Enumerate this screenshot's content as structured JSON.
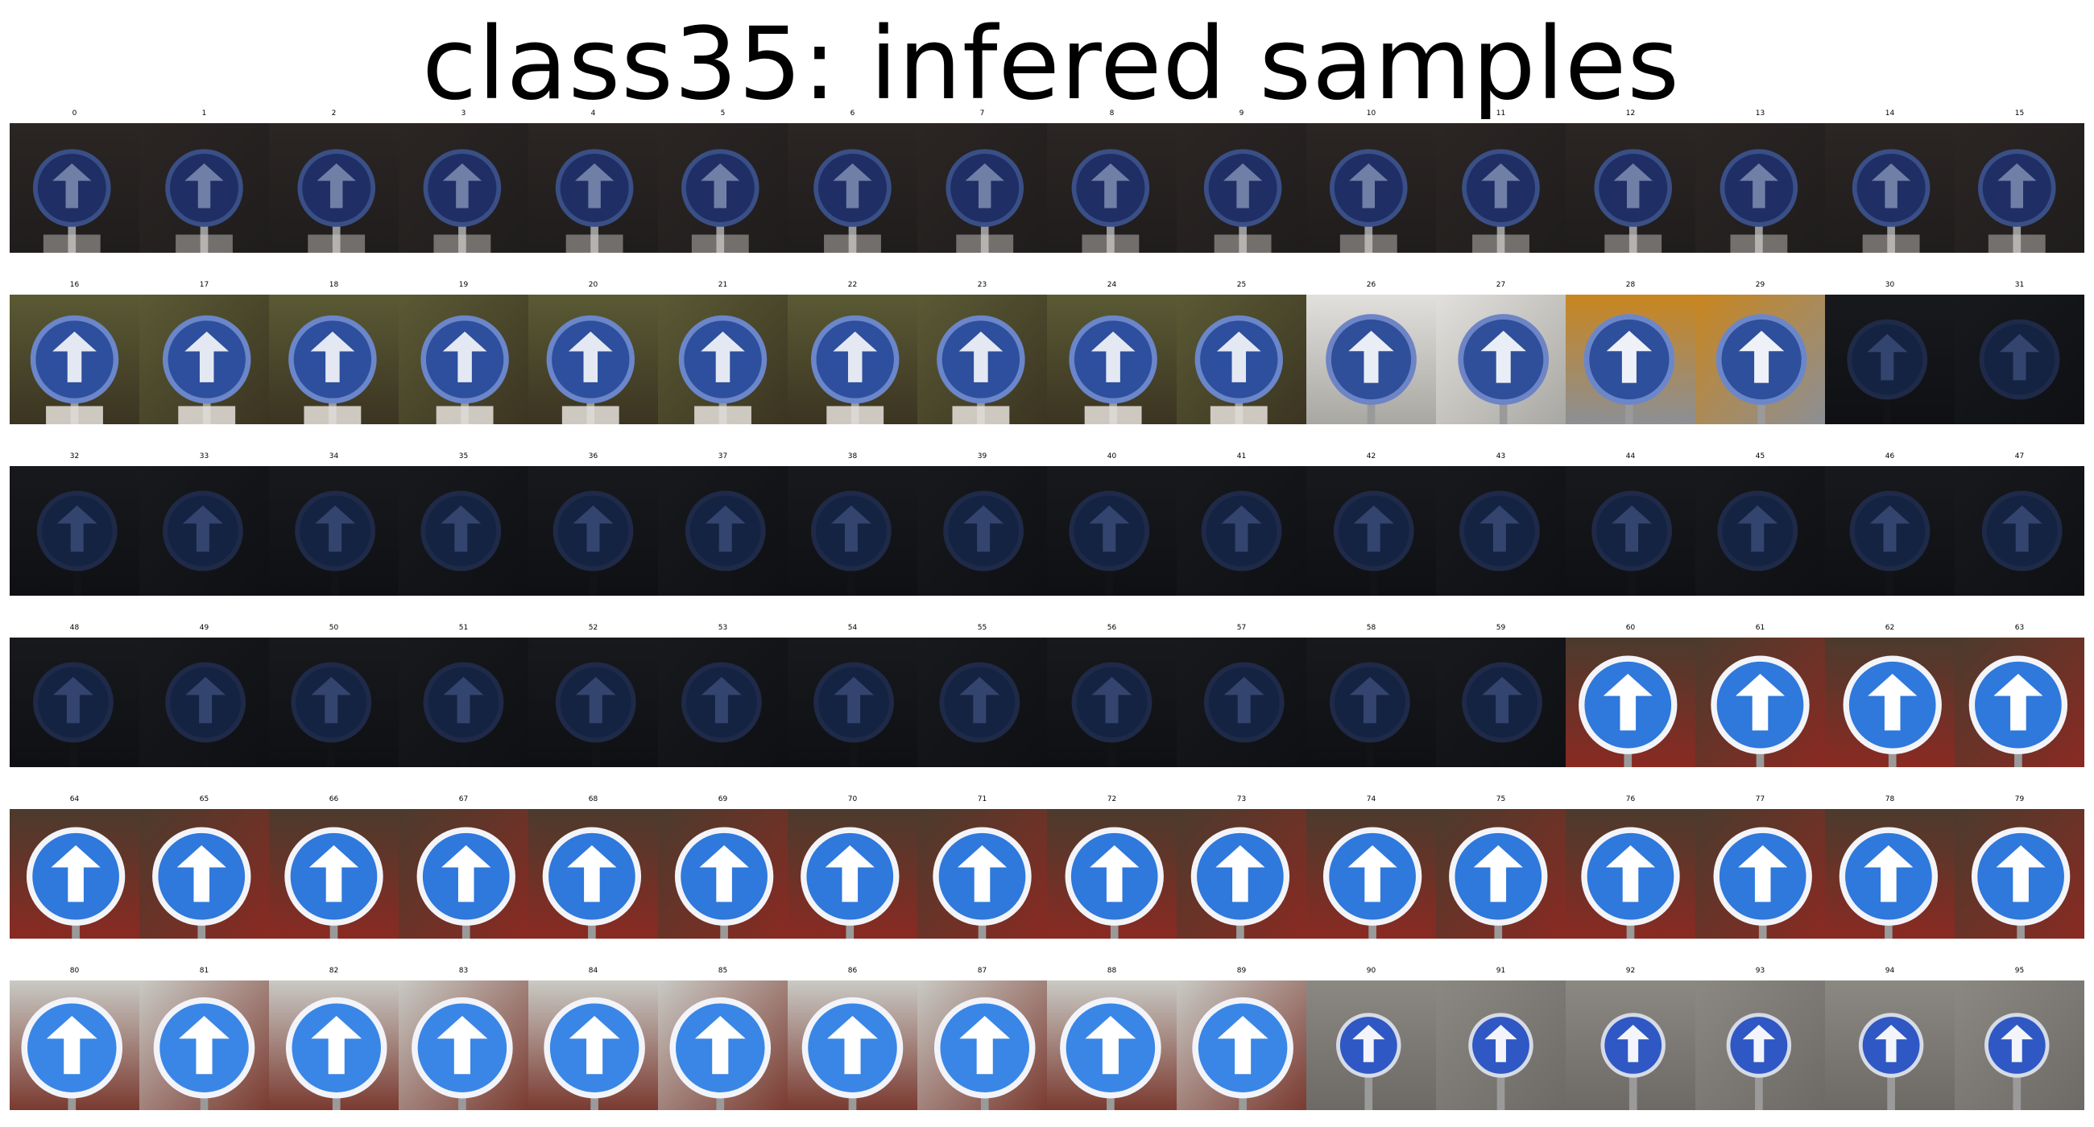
{
  "title": "class35: infered samples",
  "grid": {
    "columns": 16,
    "rows": 6
  },
  "samples": [
    {
      "label": "0",
      "scene": "dark-plate"
    },
    {
      "label": "1",
      "scene": "dark-plate"
    },
    {
      "label": "2",
      "scene": "dark-plate"
    },
    {
      "label": "3",
      "scene": "dark-plate"
    },
    {
      "label": "4",
      "scene": "dark-plate"
    },
    {
      "label": "5",
      "scene": "dark-plate"
    },
    {
      "label": "6",
      "scene": "dark-plate"
    },
    {
      "label": "7",
      "scene": "dark-plate"
    },
    {
      "label": "8",
      "scene": "dark-plate"
    },
    {
      "label": "9",
      "scene": "dark-plate"
    },
    {
      "label": "10",
      "scene": "dark-plate"
    },
    {
      "label": "11",
      "scene": "dark-plate"
    },
    {
      "label": "12",
      "scene": "dark-plate"
    },
    {
      "label": "13",
      "scene": "dark-plate"
    },
    {
      "label": "14",
      "scene": "dark-plate"
    },
    {
      "label": "15",
      "scene": "dark-plate"
    },
    {
      "label": "16",
      "scene": "foliage"
    },
    {
      "label": "17",
      "scene": "foliage"
    },
    {
      "label": "18",
      "scene": "foliage"
    },
    {
      "label": "19",
      "scene": "foliage"
    },
    {
      "label": "20",
      "scene": "foliage"
    },
    {
      "label": "21",
      "scene": "foliage"
    },
    {
      "label": "22",
      "scene": "foliage"
    },
    {
      "label": "23",
      "scene": "foliage"
    },
    {
      "label": "24",
      "scene": "foliage"
    },
    {
      "label": "25",
      "scene": "foliage"
    },
    {
      "label": "26",
      "scene": "bright-edge"
    },
    {
      "label": "27",
      "scene": "bright-edge"
    },
    {
      "label": "28",
      "scene": "orange-side"
    },
    {
      "label": "29",
      "scene": "orange-side"
    },
    {
      "label": "30",
      "scene": "very-dark"
    },
    {
      "label": "31",
      "scene": "very-dark"
    },
    {
      "label": "32",
      "scene": "very-dark"
    },
    {
      "label": "33",
      "scene": "very-dark"
    },
    {
      "label": "34",
      "scene": "very-dark"
    },
    {
      "label": "35",
      "scene": "very-dark"
    },
    {
      "label": "36",
      "scene": "very-dark"
    },
    {
      "label": "37",
      "scene": "very-dark"
    },
    {
      "label": "38",
      "scene": "very-dark"
    },
    {
      "label": "39",
      "scene": "very-dark"
    },
    {
      "label": "40",
      "scene": "very-dark"
    },
    {
      "label": "41",
      "scene": "very-dark"
    },
    {
      "label": "42",
      "scene": "very-dark"
    },
    {
      "label": "43",
      "scene": "very-dark"
    },
    {
      "label": "44",
      "scene": "very-dark"
    },
    {
      "label": "45",
      "scene": "very-dark"
    },
    {
      "label": "46",
      "scene": "very-dark"
    },
    {
      "label": "47",
      "scene": "very-dark"
    },
    {
      "label": "48",
      "scene": "very-dark"
    },
    {
      "label": "49",
      "scene": "very-dark"
    },
    {
      "label": "50",
      "scene": "very-dark"
    },
    {
      "label": "51",
      "scene": "very-dark"
    },
    {
      "label": "52",
      "scene": "very-dark"
    },
    {
      "label": "53",
      "scene": "very-dark"
    },
    {
      "label": "54",
      "scene": "very-dark"
    },
    {
      "label": "55",
      "scene": "very-dark"
    },
    {
      "label": "56",
      "scene": "very-dark"
    },
    {
      "label": "57",
      "scene": "very-dark"
    },
    {
      "label": "58",
      "scene": "very-dark"
    },
    {
      "label": "59",
      "scene": "very-dark"
    },
    {
      "label": "60",
      "scene": "red-wall"
    },
    {
      "label": "61",
      "scene": "red-wall"
    },
    {
      "label": "62",
      "scene": "red-wall"
    },
    {
      "label": "63",
      "scene": "red-wall"
    },
    {
      "label": "64",
      "scene": "red-wall"
    },
    {
      "label": "65",
      "scene": "red-wall"
    },
    {
      "label": "66",
      "scene": "red-wall"
    },
    {
      "label": "67",
      "scene": "red-wall"
    },
    {
      "label": "68",
      "scene": "red-wall"
    },
    {
      "label": "69",
      "scene": "red-wall"
    },
    {
      "label": "70",
      "scene": "red-wall"
    },
    {
      "label": "71",
      "scene": "red-wall"
    },
    {
      "label": "72",
      "scene": "red-wall"
    },
    {
      "label": "73",
      "scene": "red-wall"
    },
    {
      "label": "74",
      "scene": "red-wall"
    },
    {
      "label": "75",
      "scene": "red-wall"
    },
    {
      "label": "76",
      "scene": "red-wall"
    },
    {
      "label": "77",
      "scene": "red-wall"
    },
    {
      "label": "78",
      "scene": "red-wall"
    },
    {
      "label": "79",
      "scene": "red-wall"
    },
    {
      "label": "80",
      "scene": "bright-sign"
    },
    {
      "label": "81",
      "scene": "bright-sign"
    },
    {
      "label": "82",
      "scene": "bright-sign"
    },
    {
      "label": "83",
      "scene": "bright-sign"
    },
    {
      "label": "84",
      "scene": "bright-sign"
    },
    {
      "label": "85",
      "scene": "bright-sign"
    },
    {
      "label": "86",
      "scene": "bright-sign"
    },
    {
      "label": "87",
      "scene": "bright-sign"
    },
    {
      "label": "88",
      "scene": "bright-sign"
    },
    {
      "label": "89",
      "scene": "bright-sign"
    },
    {
      "label": "90",
      "scene": "gray-small"
    },
    {
      "label": "91",
      "scene": "gray-small"
    },
    {
      "label": "92",
      "scene": "gray-small"
    },
    {
      "label": "93",
      "scene": "gray-small"
    },
    {
      "label": "94",
      "scene": "gray-small"
    },
    {
      "label": "95",
      "scene": "gray-small"
    }
  ],
  "colors": {
    "background": "#ffffff",
    "title_text": "#000000",
    "sign_blue_bright": "#2f7de0",
    "sign_blue_dark": "#1a2a55",
    "wall_red": "#9b2a20"
  }
}
